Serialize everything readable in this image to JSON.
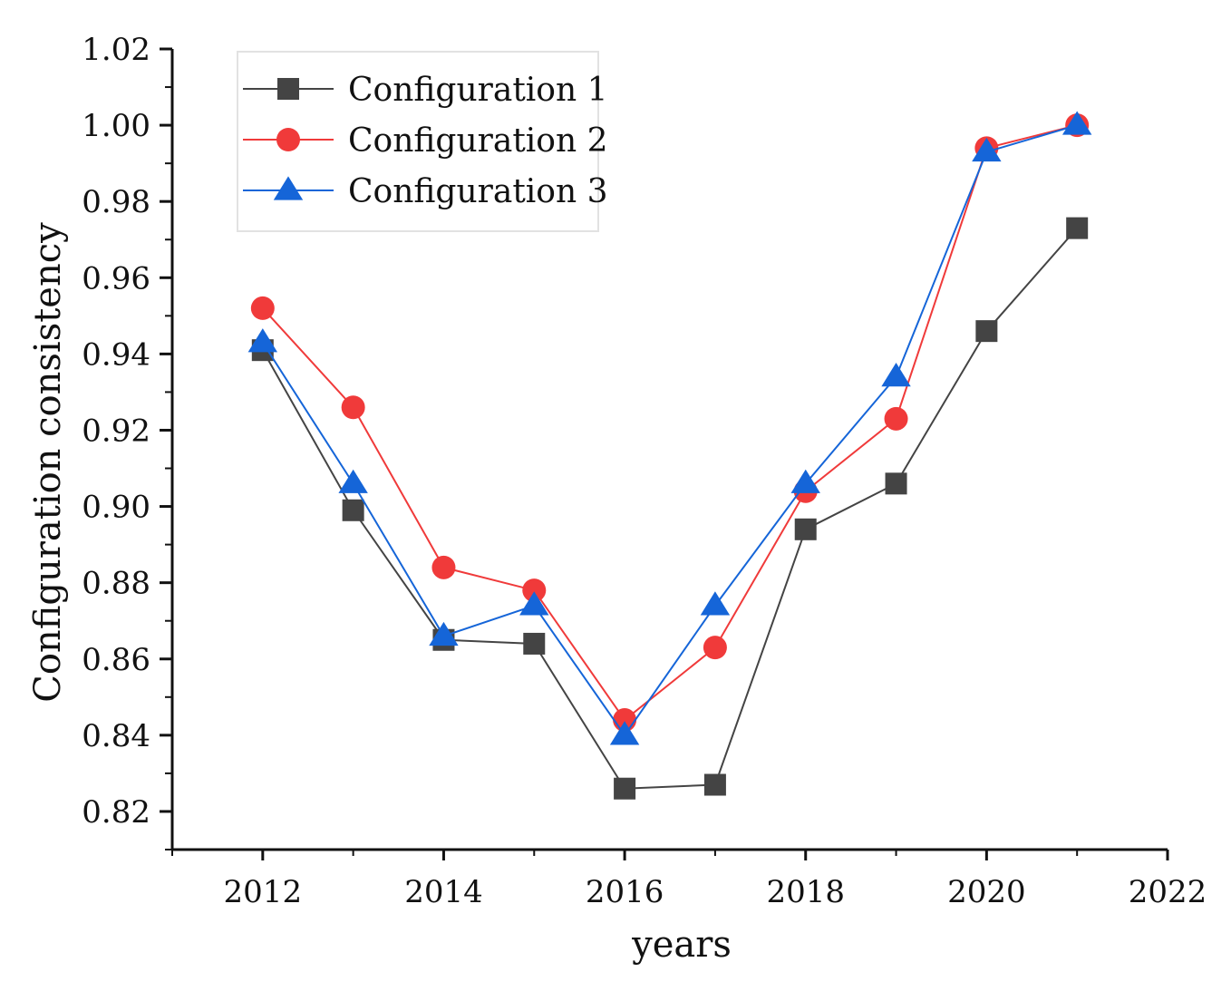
{
  "chart_data": {
    "type": "line",
    "title": "",
    "xlabel": "years",
    "ylabel": "Configuration consistency",
    "xlim": [
      2011,
      2022
    ],
    "ylim": [
      0.81,
      1.02
    ],
    "x_ticks": [
      "2012",
      "2014",
      "2016",
      "2018",
      "2020",
      "2022"
    ],
    "y_ticks": [
      "0.82",
      "0.84",
      "0.86",
      "0.88",
      "0.90",
      "0.92",
      "0.94",
      "0.96",
      "0.98",
      "1.00",
      "1.02"
    ],
    "legend_position": "top-left",
    "x": [
      2012,
      2013,
      2014,
      2015,
      2016,
      2017,
      2018,
      2019,
      2020,
      2021
    ],
    "series": [
      {
        "name": "Configuration 1",
        "marker": "square",
        "color": "#444444",
        "values": [
          0.941,
          0.899,
          0.865,
          0.864,
          0.826,
          0.827,
          0.894,
          0.906,
          0.946,
          0.973
        ]
      },
      {
        "name": "Configuration 2",
        "marker": "circle",
        "color": "#f03a3a",
        "values": [
          0.952,
          0.926,
          0.884,
          0.878,
          0.844,
          0.863,
          0.904,
          0.923,
          0.994,
          1.0
        ]
      },
      {
        "name": "Configuration 3",
        "marker": "triangle",
        "color": "#1565d8",
        "values": [
          0.943,
          0.906,
          0.866,
          0.874,
          0.84,
          0.874,
          0.906,
          0.934,
          0.993,
          1.0
        ]
      }
    ]
  }
}
